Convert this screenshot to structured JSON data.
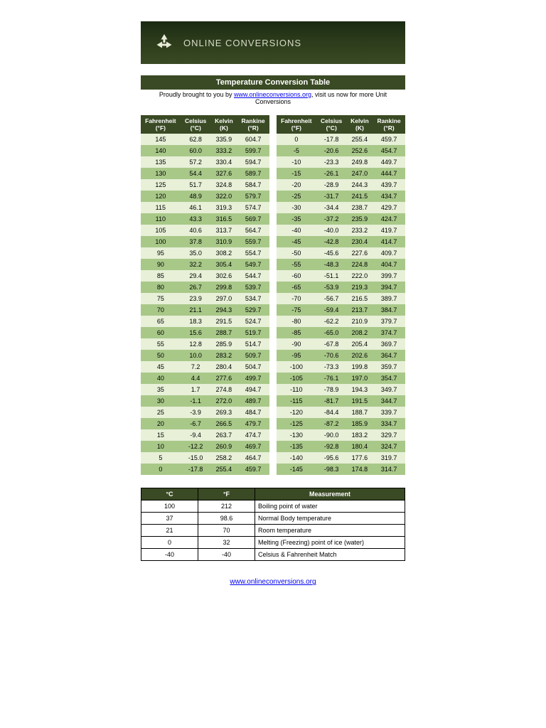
{
  "banner": {
    "text": "ONLINE CONVERSIONS"
  },
  "title": "Temperature Conversion Table",
  "subtitle_prefix": "Proudly brought to you by ",
  "subtitle_link_text": "www.onlineconversions.org",
  "subtitle_suffix": ", visit us now for more Unit Conversions",
  "headers": {
    "f": "Fahrenheit (°F)",
    "c": "Celsius (°C)",
    "k": "Kelvin (K)",
    "r": "Rankine (°R)"
  },
  "left_rows": [
    [
      "145",
      "62.8",
      "335.9",
      "604.7"
    ],
    [
      "140",
      "60.0",
      "333.2",
      "599.7"
    ],
    [
      "135",
      "57.2",
      "330.4",
      "594.7"
    ],
    [
      "130",
      "54.4",
      "327.6",
      "589.7"
    ],
    [
      "125",
      "51.7",
      "324.8",
      "584.7"
    ],
    [
      "120",
      "48.9",
      "322.0",
      "579.7"
    ],
    [
      "115",
      "46.1",
      "319.3",
      "574.7"
    ],
    [
      "110",
      "43.3",
      "316.5",
      "569.7"
    ],
    [
      "105",
      "40.6",
      "313.7",
      "564.7"
    ],
    [
      "100",
      "37.8",
      "310.9",
      "559.7"
    ],
    [
      "95",
      "35.0",
      "308.2",
      "554.7"
    ],
    [
      "90",
      "32.2",
      "305.4",
      "549.7"
    ],
    [
      "85",
      "29.4",
      "302.6",
      "544.7"
    ],
    [
      "80",
      "26.7",
      "299.8",
      "539.7"
    ],
    [
      "75",
      "23.9",
      "297.0",
      "534.7"
    ],
    [
      "70",
      "21.1",
      "294.3",
      "529.7"
    ],
    [
      "65",
      "18.3",
      "291.5",
      "524.7"
    ],
    [
      "60",
      "15.6",
      "288.7",
      "519.7"
    ],
    [
      "55",
      "12.8",
      "285.9",
      "514.7"
    ],
    [
      "50",
      "10.0",
      "283.2",
      "509.7"
    ],
    [
      "45",
      "7.2",
      "280.4",
      "504.7"
    ],
    [
      "40",
      "4.4",
      "277.6",
      "499.7"
    ],
    [
      "35",
      "1.7",
      "274.8",
      "494.7"
    ],
    [
      "30",
      "-1.1",
      "272.0",
      "489.7"
    ],
    [
      "25",
      "-3.9",
      "269.3",
      "484.7"
    ],
    [
      "20",
      "-6.7",
      "266.5",
      "479.7"
    ],
    [
      "15",
      "-9.4",
      "263.7",
      "474.7"
    ],
    [
      "10",
      "-12.2",
      "260.9",
      "469.7"
    ],
    [
      "5",
      "-15.0",
      "258.2",
      "464.7"
    ],
    [
      "0",
      "-17.8",
      "255.4",
      "459.7"
    ]
  ],
  "right_rows": [
    [
      "0",
      "-17.8",
      "255.4",
      "459.7"
    ],
    [
      "-5",
      "-20.6",
      "252.6",
      "454.7"
    ],
    [
      "-10",
      "-23.3",
      "249.8",
      "449.7"
    ],
    [
      "-15",
      "-26.1",
      "247.0",
      "444.7"
    ],
    [
      "-20",
      "-28.9",
      "244.3",
      "439.7"
    ],
    [
      "-25",
      "-31.7",
      "241.5",
      "434.7"
    ],
    [
      "-30",
      "-34.4",
      "238.7",
      "429.7"
    ],
    [
      "-35",
      "-37.2",
      "235.9",
      "424.7"
    ],
    [
      "-40",
      "-40.0",
      "233.2",
      "419.7"
    ],
    [
      "-45",
      "-42.8",
      "230.4",
      "414.7"
    ],
    [
      "-50",
      "-45.6",
      "227.6",
      "409.7"
    ],
    [
      "-55",
      "-48.3",
      "224.8",
      "404.7"
    ],
    [
      "-60",
      "-51.1",
      "222.0",
      "399.7"
    ],
    [
      "-65",
      "-53.9",
      "219.3",
      "394.7"
    ],
    [
      "-70",
      "-56.7",
      "216.5",
      "389.7"
    ],
    [
      "-75",
      "-59.4",
      "213.7",
      "384.7"
    ],
    [
      "-80",
      "-62.2",
      "210.9",
      "379.7"
    ],
    [
      "-85",
      "-65.0",
      "208.2",
      "374.7"
    ],
    [
      "-90",
      "-67.8",
      "205.4",
      "369.7"
    ],
    [
      "-95",
      "-70.6",
      "202.6",
      "364.7"
    ],
    [
      "-100",
      "-73.3",
      "199.8",
      "359.7"
    ],
    [
      "-105",
      "-76.1",
      "197.0",
      "354.7"
    ],
    [
      "-110",
      "-78.9",
      "194.3",
      "349.7"
    ],
    [
      "-115",
      "-81.7",
      "191.5",
      "344.7"
    ],
    [
      "-120",
      "-84.4",
      "188.7",
      "339.7"
    ],
    [
      "-125",
      "-87.2",
      "185.9",
      "334.7"
    ],
    [
      "-130",
      "-90.0",
      "183.2",
      "329.7"
    ],
    [
      "-135",
      "-92.8",
      "180.4",
      "324.7"
    ],
    [
      "-140",
      "-95.6",
      "177.6",
      "319.7"
    ],
    [
      "-145",
      "-98.3",
      "174.8",
      "314.7"
    ]
  ],
  "ref": {
    "headers": {
      "c": "°C",
      "f": "°F",
      "m": "Measurement"
    },
    "rows": [
      [
        "100",
        "212",
        "Boiling point of water"
      ],
      [
        "37",
        "98.6",
        "Normal Body temperature"
      ],
      [
        "21",
        "70",
        "Room temperature"
      ],
      [
        "0",
        "32",
        "Melting (Freezing) point of ice (water)"
      ],
      [
        "-40",
        "-40",
        "Celsius & Fahrenheit Match"
      ]
    ]
  },
  "footer_link_text": "www.onlineconversions.org",
  "colors": {
    "header_bg": "#3a4a24",
    "row_odd": "#e8f0d8",
    "row_even": "#a8c888",
    "link": "#0000ee"
  }
}
